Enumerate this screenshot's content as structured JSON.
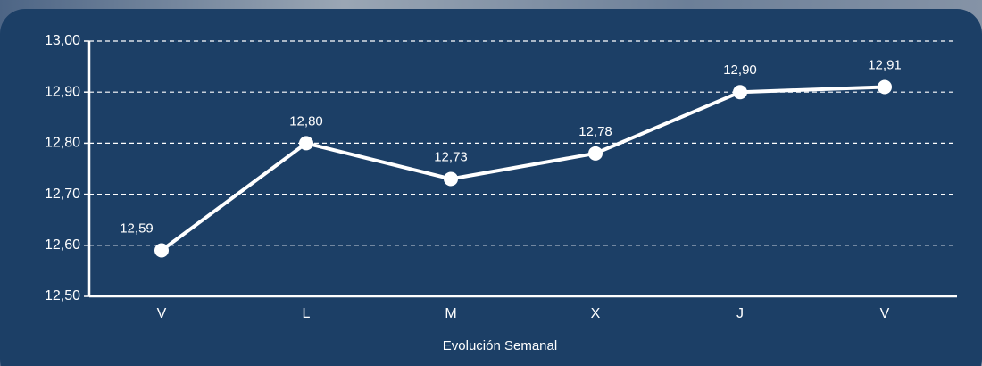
{
  "chart_data": {
    "type": "line",
    "xlabel": "Evolución Semanal",
    "categories": [
      "V",
      "L",
      "M",
      "X",
      "J",
      "V"
    ],
    "series": [
      {
        "name": null,
        "color": "#ffffff",
        "values": [
          12.59,
          12.8,
          12.73,
          12.78,
          12.9,
          12.91
        ],
        "value_labels": [
          "12,59",
          "12,80",
          "12,73",
          "12,78",
          "12,90",
          "12,91"
        ]
      }
    ],
    "ylim": [
      12.5,
      13.0
    ],
    "yticks": [
      {
        "value": 12.5,
        "label": "12,50"
      },
      {
        "value": 12.6,
        "label": "12,60"
      },
      {
        "value": 12.7,
        "label": "12,70"
      },
      {
        "value": 12.8,
        "label": "12,80"
      },
      {
        "value": 12.9,
        "label": "12,90"
      },
      {
        "value": 13.0,
        "label": "13,00"
      }
    ],
    "grid": true
  }
}
